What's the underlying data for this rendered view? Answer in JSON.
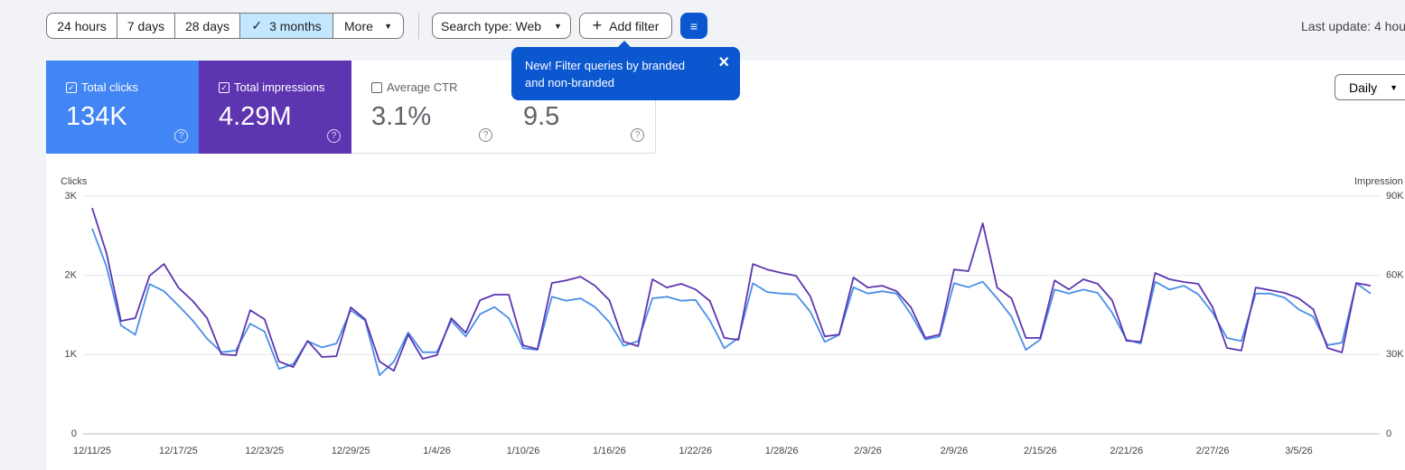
{
  "toolbar": {
    "ranges": [
      "24 hours",
      "7 days",
      "28 days",
      "3 months",
      "More"
    ],
    "search_type": "Search type: Web",
    "add_filter": "Add filter",
    "last_update": "Last update: 4 hou"
  },
  "tooltip": {
    "text": "New! Filter queries by branded and non-branded"
  },
  "cards": [
    {
      "label": "Total clicks",
      "value": "134K"
    },
    {
      "label": "Total impressions",
      "value": "4.29M"
    },
    {
      "label": "Average CTR",
      "value": "3.1%"
    },
    {
      "value": "9.5"
    }
  ],
  "granularity": "Daily",
  "chart_data": {
    "type": "line",
    "ylabel": "Clicks",
    "y2label": "Impression",
    "categories": [
      "12/11/25",
      null,
      null,
      null,
      null,
      null,
      "12/17/25",
      null,
      null,
      null,
      null,
      null,
      "12/23/25",
      null,
      null,
      null,
      null,
      null,
      "12/29/25",
      null,
      null,
      null,
      null,
      null,
      "1/4/26",
      null,
      null,
      null,
      null,
      null,
      "1/10/26",
      null,
      null,
      null,
      null,
      null,
      "1/16/26",
      null,
      null,
      null,
      null,
      null,
      "1/22/26",
      null,
      null,
      null,
      null,
      null,
      "1/28/26",
      null,
      null,
      null,
      null,
      null,
      "2/3/26",
      null,
      null,
      null,
      null,
      null,
      "2/9/26",
      null,
      null,
      null,
      null,
      null,
      "2/15/26",
      null,
      null,
      null,
      null,
      null,
      "2/21/26",
      null,
      null,
      null,
      null,
      null,
      "2/27/26",
      null,
      null,
      null,
      null,
      null,
      "3/5/26",
      null,
      null,
      null,
      null,
      null
    ],
    "ylim": [
      0,
      3000
    ],
    "yticks": [
      0,
      {
        "value": 1000,
        "label": "1K"
      },
      {
        "value": 2000,
        "label": "2K"
      },
      {
        "value": 3000,
        "label": "3K"
      }
    ],
    "y2lim": [
      0,
      90000
    ],
    "y2ticks": [
      0,
      {
        "value": 30000,
        "label": "30K"
      },
      {
        "value": 60000,
        "label": "60K"
      },
      {
        "value": 90000,
        "label": "90K"
      }
    ],
    "grid": true,
    "series": [
      {
        "name": "Total clicks",
        "color": "#4a8fe7",
        "values": [
          2590,
          2110,
          1370,
          1250,
          1890,
          1800,
          1620,
          1430,
          1200,
          1030,
          1050,
          1390,
          1290,
          820,
          880,
          1170,
          1090,
          1140,
          1560,
          1430,
          740,
          910,
          1280,
          1030,
          1030,
          1430,
          1230,
          1510,
          1600,
          1460,
          1080,
          1060,
          1730,
          1680,
          1710,
          1600,
          1410,
          1110,
          1170,
          1710,
          1730,
          1680,
          1690,
          1430,
          1080,
          1210,
          1900,
          1790,
          1770,
          1760,
          1540,
          1160,
          1250,
          1850,
          1770,
          1800,
          1770,
          1510,
          1190,
          1230,
          1900,
          1850,
          1920,
          1710,
          1480,
          1060,
          1190,
          1820,
          1770,
          1820,
          1780,
          1530,
          1190,
          1140,
          1920,
          1820,
          1870,
          1760,
          1530,
          1210,
          1170,
          1770,
          1770,
          1720,
          1570,
          1480,
          1120,
          1150,
          1900,
          1770
        ]
      },
      {
        "name": "Total impressions",
        "color": "#5e35b1",
        "axis": "y2",
        "values": [
          85500,
          68400,
          42750,
          43800,
          59850,
          64300,
          55400,
          50300,
          43800,
          30100,
          29750,
          46850,
          43400,
          27400,
          25300,
          35200,
          29100,
          29400,
          47900,
          43400,
          27400,
          23900,
          37600,
          28400,
          29800,
          43800,
          38300,
          50600,
          52700,
          52700,
          33500,
          32100,
          57100,
          58100,
          59500,
          56100,
          50600,
          34900,
          33200,
          58500,
          55400,
          56800,
          54700,
          50300,
          36300,
          35600,
          64300,
          62200,
          60900,
          59850,
          52000,
          36900,
          37600,
          59200,
          55400,
          56100,
          54000,
          47900,
          36300,
          37600,
          62200,
          61600,
          79700,
          55400,
          51300,
          36300,
          36300,
          58100,
          54700,
          58500,
          56800,
          50600,
          35200,
          34900,
          60900,
          58500,
          57500,
          56800,
          47900,
          32500,
          31500,
          55400,
          54400,
          53400,
          51300,
          47200,
          32500,
          30800,
          57100,
          56100
        ]
      }
    ]
  }
}
